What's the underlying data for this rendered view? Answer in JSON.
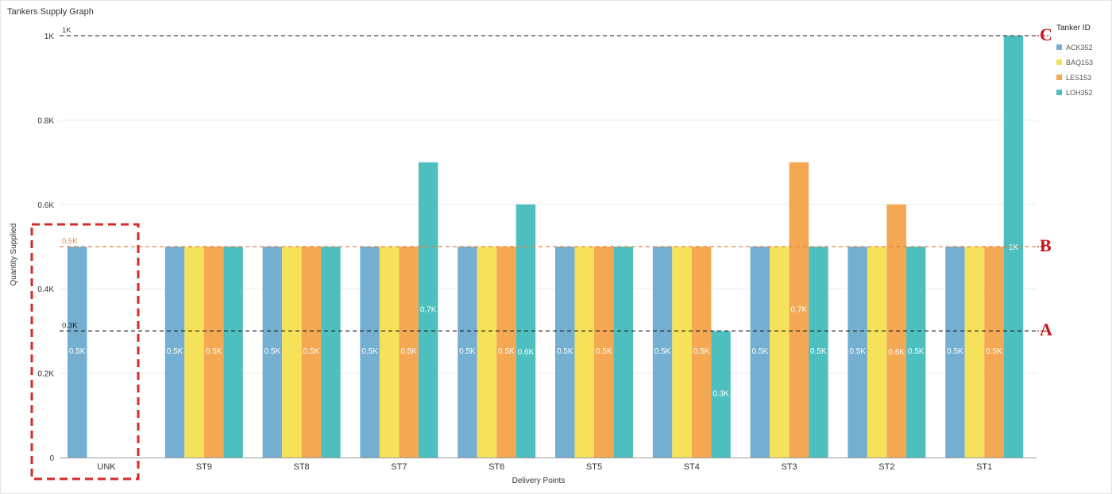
{
  "chart_title": "Tankers Supply Graph",
  "legend": {
    "title": "Tanker ID",
    "items": [
      {
        "label": "ACK352",
        "color": "#74aed0"
      },
      {
        "label": "BAQ153",
        "color": "#f5e25a"
      },
      {
        "label": "LES153",
        "color": "#f4a853"
      },
      {
        "label": "LOH352",
        "color": "#4ebfbf"
      }
    ]
  },
  "chart_data": {
    "type": "bar",
    "xlabel": "Delivery Points",
    "ylabel": "Quantity Supplied",
    "ylim": [
      0,
      1000
    ],
    "yticks": [
      0,
      200,
      400,
      600,
      800,
      1000
    ],
    "ytick_labels": [
      "0",
      "0.2K",
      "0.4K",
      "0.6K",
      "0.8K",
      "1K"
    ],
    "grid": true,
    "legend_position": "top-right",
    "categories": [
      "UNK",
      "ST9",
      "ST8",
      "ST7",
      "ST6",
      "ST5",
      "ST4",
      "ST3",
      "ST2",
      "ST1"
    ],
    "series": [
      {
        "name": "ACK352",
        "color": "#74aed0",
        "values": [
          500,
          500,
          500,
          500,
          500,
          500,
          500,
          500,
          500,
          500
        ],
        "labels": [
          "0.5K",
          "0.5K",
          "0.5K",
          "0.5K",
          "0.5K",
          "0.5K",
          "0.5K",
          "0.5K",
          "0.5K",
          "0.5K"
        ]
      },
      {
        "name": "BAQ153",
        "color": "#f5e25a",
        "values": [
          null,
          500,
          500,
          500,
          500,
          500,
          500,
          500,
          500,
          500
        ],
        "labels": [
          "",
          "",
          "",
          "",
          "",
          "",
          "",
          "",
          "",
          ""
        ]
      },
      {
        "name": "LES153",
        "color": "#f4a853",
        "values": [
          null,
          500,
          500,
          500,
          500,
          500,
          500,
          700,
          600,
          500
        ],
        "labels": [
          "",
          "0.5K",
          "0.5K",
          "0.5K",
          "0.5K",
          "0.5K",
          "0.5K",
          "0.7K",
          "0.6K",
          "0.5K"
        ]
      },
      {
        "name": "LOH352",
        "color": "#4ebfbf",
        "values": [
          null,
          500,
          500,
          700,
          600,
          500,
          300,
          500,
          500,
          1000
        ],
        "labels": [
          "",
          "",
          "",
          "0.7K",
          "0.6K",
          "",
          "0.3K",
          "0.5K",
          "0.5K",
          "1K"
        ]
      }
    ],
    "reference_lines": [
      {
        "value": 1000,
        "label": "1K",
        "color": "#444444",
        "marker": "C"
      },
      {
        "value": 500,
        "label": "0.5K",
        "color": "#e8834a",
        "marker": "B"
      },
      {
        "value": 300,
        "label": "0.3K",
        "color": "#222222",
        "marker": "A"
      }
    ],
    "highlight_category": "UNK"
  }
}
